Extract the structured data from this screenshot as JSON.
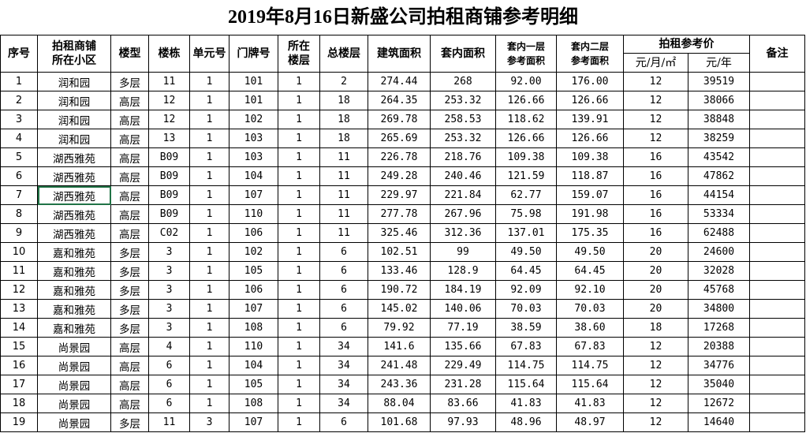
{
  "title": "2019年8月16日新盛公司拍租商铺参考明细",
  "headers": {
    "seq": "序号",
    "community": "拍租商铺所在小区",
    "community_line1": "拍租商铺",
    "community_line2": "所在小区",
    "type": "楼型",
    "building": "楼栋",
    "unit": "单元号",
    "door": "门牌号",
    "floor_line1": "所在",
    "floor_line2": "楼层",
    "total_floors": "总楼层",
    "gross_area": "建筑面积",
    "inner_area": "套内面积",
    "f1_line1": "套内一层",
    "f1_line2": "参考面积",
    "f2_line1": "套内二层",
    "f2_line2": "参考面积",
    "price_group": "拍租参考价",
    "price_month": "元/月/㎡",
    "price_year": "元/年",
    "remark": "备注"
  },
  "selected_cell": {
    "row": 7,
    "column": "拍租商铺所在小区",
    "border_color": "#217346"
  },
  "rows": [
    [
      "1",
      "润和园",
      "多层",
      "11",
      "1",
      "101",
      "1",
      "2",
      "274.44",
      "268",
      "92.00",
      "176.00",
      "12",
      "39519",
      ""
    ],
    [
      "2",
      "润和园",
      "高层",
      "12",
      "1",
      "101",
      "1",
      "18",
      "264.35",
      "253.32",
      "126.66",
      "126.66",
      "12",
      "38066",
      ""
    ],
    [
      "3",
      "润和园",
      "高层",
      "12",
      "1",
      "102",
      "1",
      "18",
      "269.78",
      "258.53",
      "118.62",
      "139.91",
      "12",
      "38848",
      ""
    ],
    [
      "4",
      "润和园",
      "高层",
      "13",
      "1",
      "103",
      "1",
      "18",
      "265.69",
      "253.32",
      "126.66",
      "126.66",
      "12",
      "38259",
      ""
    ],
    [
      "5",
      "湖西雅苑",
      "高层",
      "B09",
      "1",
      "103",
      "1",
      "11",
      "226.78",
      "218.76",
      "109.38",
      "109.38",
      "16",
      "43542",
      ""
    ],
    [
      "6",
      "湖西雅苑",
      "高层",
      "B09",
      "1",
      "104",
      "1",
      "11",
      "249.28",
      "240.46",
      "121.59",
      "118.87",
      "16",
      "47862",
      ""
    ],
    [
      "7",
      "湖西雅苑",
      "高层",
      "B09",
      "1",
      "107",
      "1",
      "11",
      "229.97",
      "221.84",
      "62.77",
      "159.07",
      "16",
      "44154",
      ""
    ],
    [
      "8",
      "湖西雅苑",
      "高层",
      "B09",
      "1",
      "110",
      "1",
      "11",
      "277.78",
      "267.96",
      "75.98",
      "191.98",
      "16",
      "53334",
      ""
    ],
    [
      "9",
      "湖西雅苑",
      "高层",
      "C02",
      "1",
      "106",
      "1",
      "11",
      "325.46",
      "312.36",
      "137.01",
      "175.35",
      "16",
      "62488",
      ""
    ],
    [
      "10",
      "嘉和雅苑",
      "多层",
      "3",
      "1",
      "102",
      "1",
      "6",
      "102.51",
      "99",
      "49.50",
      "49.50",
      "20",
      "24600",
      ""
    ],
    [
      "11",
      "嘉和雅苑",
      "多层",
      "3",
      "1",
      "105",
      "1",
      "6",
      "133.46",
      "128.9",
      "64.45",
      "64.45",
      "20",
      "32028",
      ""
    ],
    [
      "12",
      "嘉和雅苑",
      "多层",
      "3",
      "1",
      "106",
      "1",
      "6",
      "190.72",
      "184.19",
      "92.09",
      "92.10",
      "20",
      "45768",
      ""
    ],
    [
      "13",
      "嘉和雅苑",
      "多层",
      "3",
      "1",
      "107",
      "1",
      "6",
      "145.02",
      "140.06",
      "70.03",
      "70.03",
      "20",
      "34800",
      ""
    ],
    [
      "14",
      "嘉和雅苑",
      "多层",
      "3",
      "1",
      "108",
      "1",
      "6",
      "79.92",
      "77.19",
      "38.59",
      "38.60",
      "18",
      "17268",
      ""
    ],
    [
      "15",
      "尚景园",
      "高层",
      "4",
      "1",
      "110",
      "1",
      "34",
      "141.6",
      "135.66",
      "67.83",
      "67.83",
      "12",
      "20388",
      ""
    ],
    [
      "16",
      "尚景园",
      "高层",
      "6",
      "1",
      "104",
      "1",
      "34",
      "241.48",
      "229.49",
      "114.75",
      "114.75",
      "12",
      "34776",
      ""
    ],
    [
      "17",
      "尚景园",
      "高层",
      "6",
      "1",
      "105",
      "1",
      "34",
      "243.36",
      "231.28",
      "115.64",
      "115.64",
      "12",
      "35040",
      ""
    ],
    [
      "18",
      "尚景园",
      "高层",
      "6",
      "1",
      "108",
      "1",
      "34",
      "88.04",
      "83.66",
      "41.83",
      "41.83",
      "12",
      "12672",
      ""
    ],
    [
      "19",
      "尚景园",
      "多层",
      "11",
      "3",
      "107",
      "1",
      "6",
      "101.68",
      "97.93",
      "48.96",
      "48.97",
      "12",
      "14640",
      ""
    ]
  ]
}
